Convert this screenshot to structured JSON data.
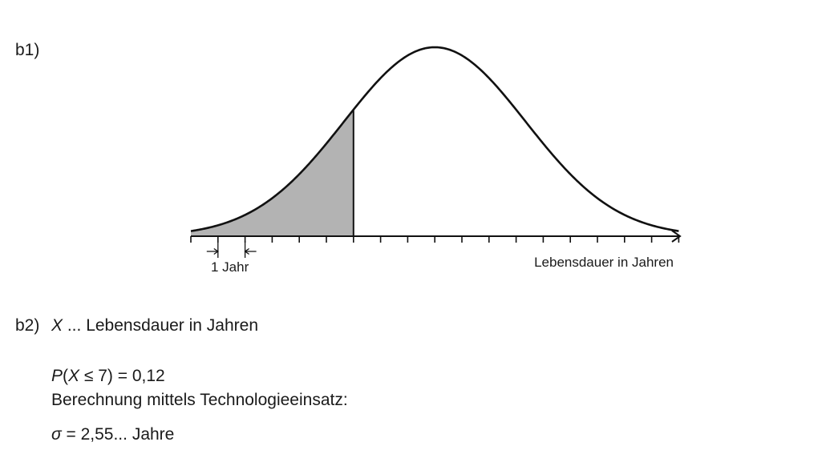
{
  "b1": {
    "label": "b1)"
  },
  "diagram": {
    "unit_marker_label": "1 Jahr",
    "axis_label": "Lebensdauer in Jahren"
  },
  "b2": {
    "label": "b2)",
    "var_symbol": "X",
    "var_desc": " ... Lebensdauer in Jahren",
    "prob_P": "P",
    "prob_open": "(",
    "prob_X": "X",
    "prob_rest": " ≤ 7) = 0,12",
    "calc_text": "Berechnung mittels Technologieeinsatz:",
    "sigma_symbol": "σ",
    "sigma_rest": " = 2,55... Jahre"
  },
  "chart_data": {
    "type": "area",
    "curve": "normal",
    "axis_ticks": 18,
    "tick_unit": "1 Jahr",
    "mean_tick": 9,
    "shaded_up_to_tick": 6
  }
}
